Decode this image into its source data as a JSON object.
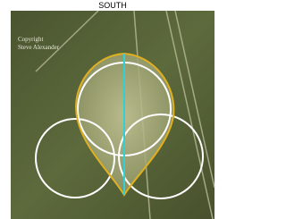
{
  "header": {
    "title": "SOUTH"
  },
  "image": {
    "credit": [
      "Copyright",
      "Steve Alexander"
    ]
  }
}
